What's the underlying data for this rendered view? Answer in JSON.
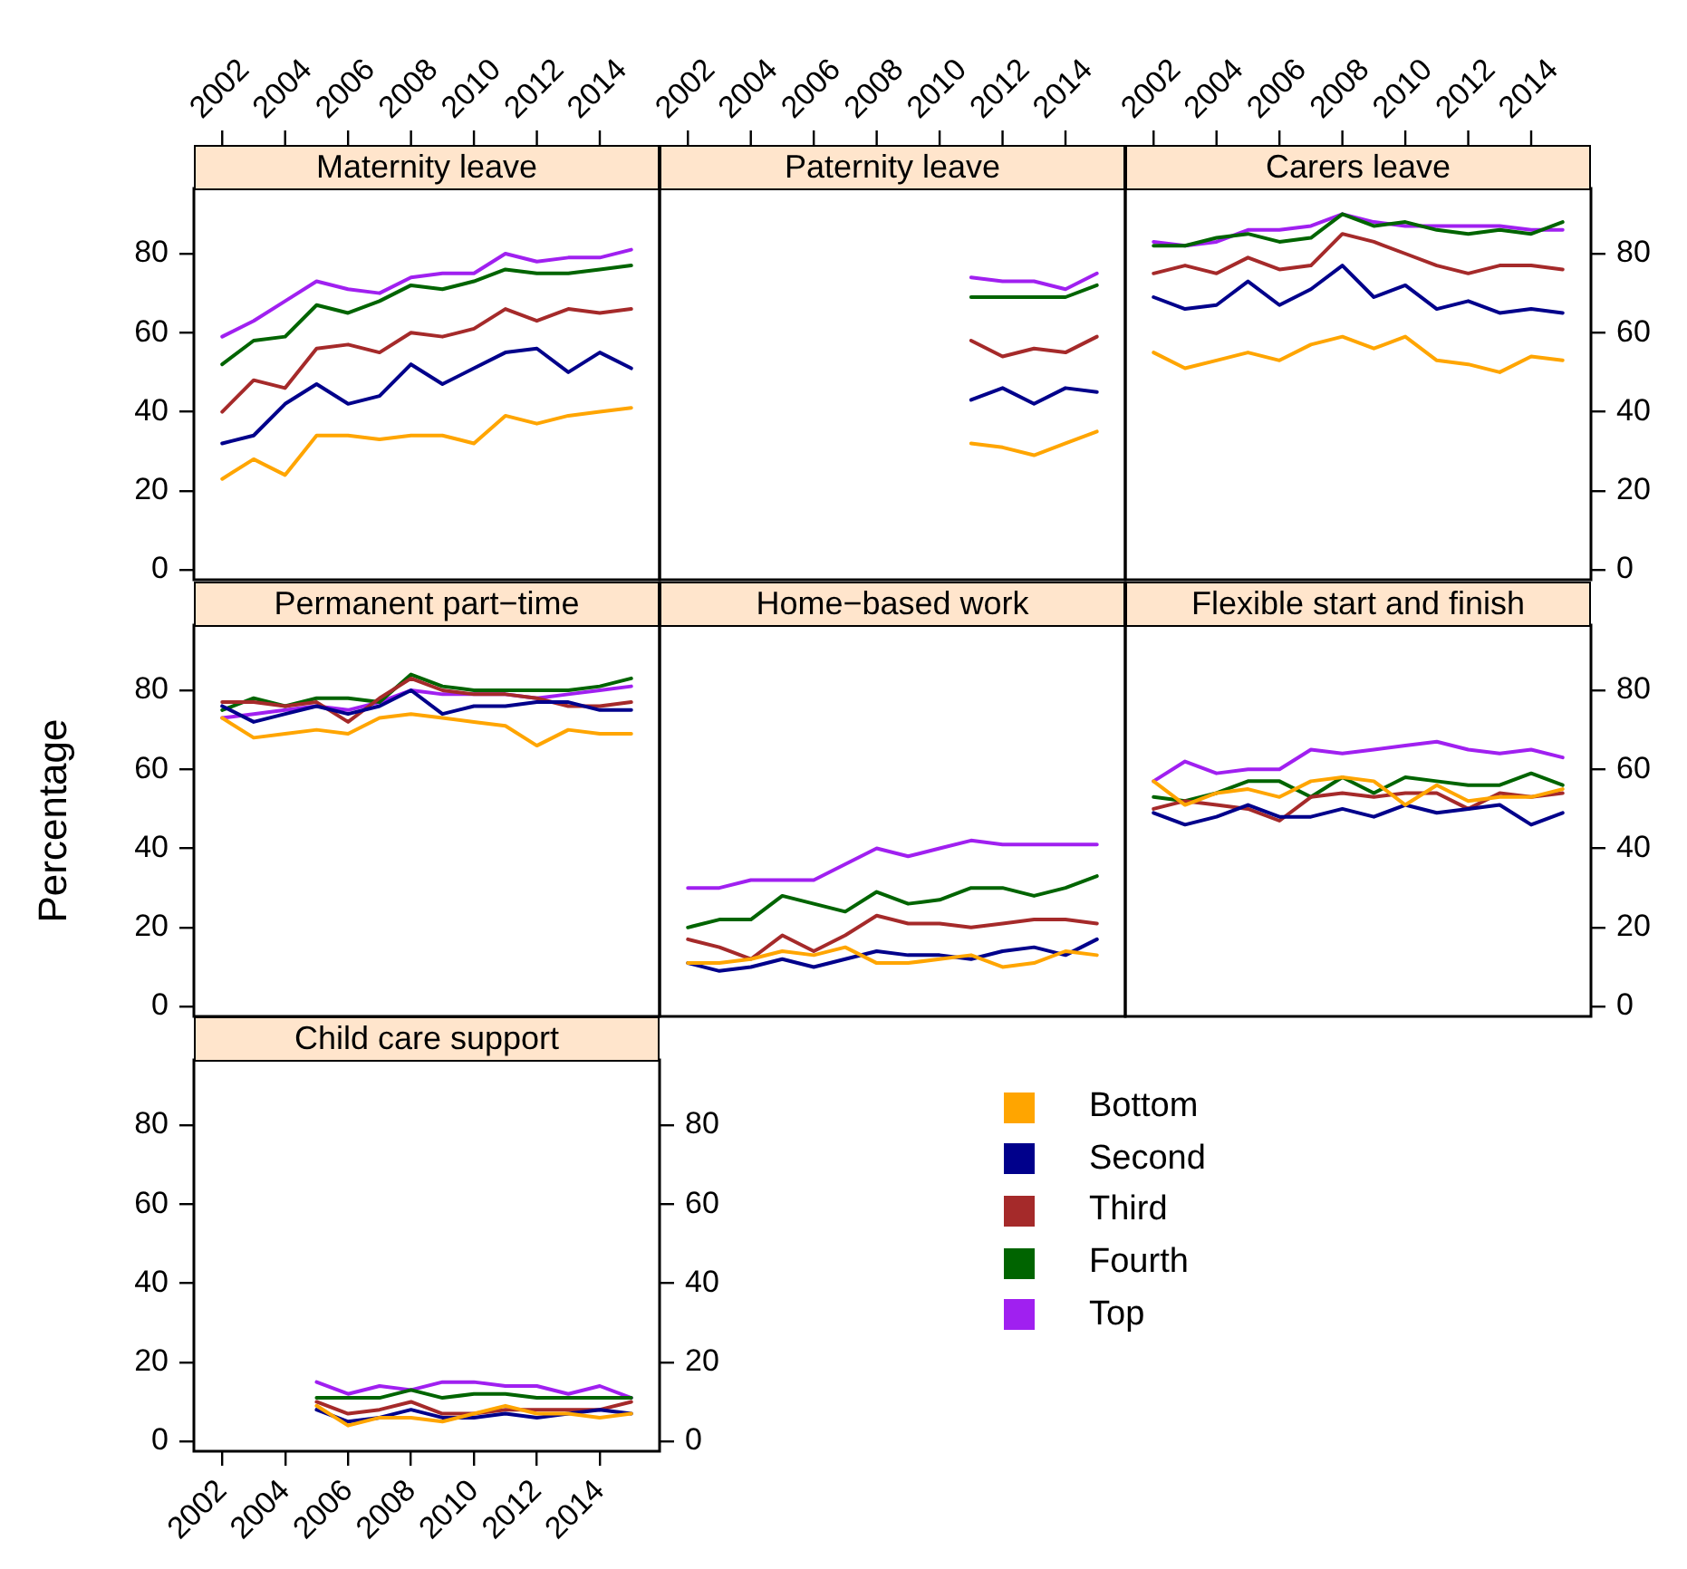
{
  "chart_data": [
    {
      "type": "line",
      "title": "Maternity leave",
      "x": [
        2002,
        2003,
        2004,
        2005,
        2006,
        2007,
        2008,
        2009,
        2010,
        2011,
        2012,
        2013,
        2014,
        2015
      ],
      "xlim": [
        2001.1,
        2015.9
      ],
      "xticks": [
        2002,
        2004,
        2006,
        2008,
        2010,
        2012,
        2014
      ],
      "ylim": [
        -2.5,
        96.5
      ],
      "yticks": [
        0,
        20,
        40,
        60,
        80
      ],
      "grid": false,
      "series": [
        {
          "color": "#ffa500",
          "values": [
            23,
            28,
            24,
            34,
            34,
            33,
            34,
            34,
            32,
            39,
            37,
            39,
            40,
            41
          ]
        },
        {
          "color": "#00008b",
          "values": [
            32,
            34,
            42,
            47,
            42,
            44,
            52,
            47,
            51,
            55,
            56,
            50,
            55,
            51
          ]
        },
        {
          "color": "#a52a2a",
          "values": [
            40,
            48,
            46,
            56,
            57,
            55,
            60,
            59,
            61,
            66,
            63,
            66,
            65,
            66
          ]
        },
        {
          "color": "#006400",
          "values": [
            52,
            58,
            59,
            67,
            65,
            68,
            72,
            71,
            73,
            76,
            75,
            75,
            76,
            77
          ]
        },
        {
          "color": "#a020f0",
          "values": [
            59,
            63,
            68,
            73,
            71,
            70,
            74,
            75,
            75,
            80,
            78,
            79,
            79,
            81
          ]
        }
      ]
    },
    {
      "type": "line",
      "title": "Paternity leave",
      "x": [
        2011,
        2012,
        2013,
        2014,
        2015
      ],
      "xlim": [
        2001.1,
        2015.9
      ],
      "xticks": [
        2002,
        2004,
        2006,
        2008,
        2010,
        2012,
        2014
      ],
      "ylim": [
        -2.5,
        96.5
      ],
      "tick_labels": "x",
      "grid": false,
      "series": [
        {
          "color": "#ffa500",
          "values": [
            32,
            31,
            29,
            32,
            35
          ]
        },
        {
          "color": "#00008b",
          "values": [
            43,
            46,
            42,
            46,
            45
          ]
        },
        {
          "color": "#a52a2a",
          "values": [
            58,
            54,
            56,
            55,
            59
          ]
        },
        {
          "color": "#006400",
          "values": [
            69,
            69,
            69,
            69,
            72
          ]
        },
        {
          "color": "#a020f0",
          "values": [
            74,
            73,
            73,
            71,
            75
          ]
        }
      ]
    },
    {
      "type": "line",
      "title": "Carers leave",
      "x": [
        2002,
        2003,
        2004,
        2005,
        2006,
        2007,
        2008,
        2009,
        2010,
        2011,
        2012,
        2013,
        2014,
        2015
      ],
      "xlim": [
        2001.1,
        2015.9
      ],
      "xticks": [
        2002,
        2004,
        2006,
        2008,
        2010,
        2012,
        2014
      ],
      "ylim": [
        -2.5,
        96.5
      ],
      "yticks": [
        0,
        20,
        40,
        60,
        80
      ],
      "grid": false,
      "series": [
        {
          "color": "#ffa500",
          "values": [
            55,
            51,
            53,
            55,
            53,
            57,
            59,
            56,
            59,
            53,
            52,
            50,
            54,
            53
          ]
        },
        {
          "color": "#00008b",
          "values": [
            69,
            66,
            67,
            73,
            67,
            71,
            77,
            69,
            72,
            66,
            68,
            65,
            66,
            65
          ]
        },
        {
          "color": "#a52a2a",
          "values": [
            75,
            77,
            75,
            79,
            76,
            77,
            85,
            83,
            80,
            77,
            75,
            77,
            77,
            76
          ]
        },
        {
          "color": "#006400",
          "values": [
            82,
            82,
            84,
            85,
            83,
            84,
            90,
            87,
            88,
            86,
            85,
            86,
            85,
            88
          ]
        },
        {
          "color": "#a020f0",
          "values": [
            83,
            82,
            83,
            86,
            86,
            87,
            90,
            88,
            87,
            87,
            87,
            87,
            86,
            86
          ]
        }
      ]
    },
    {
      "type": "line",
      "title": "Permanent part−time",
      "ylabel": "Percentage",
      "x": [
        2002,
        2003,
        2004,
        2005,
        2006,
        2007,
        2008,
        2009,
        2010,
        2011,
        2012,
        2013,
        2014,
        2015
      ],
      "xlim": [
        2001.1,
        2015.9
      ],
      "ylim": [
        -2.5,
        96.5
      ],
      "yticks": [
        0,
        20,
        40,
        60,
        80
      ],
      "tick_labels": "y",
      "grid": false,
      "series": [
        {
          "color": "#ffa500",
          "values": [
            73,
            68,
            69,
            70,
            69,
            73,
            74,
            73,
            72,
            71,
            66,
            70,
            69,
            69
          ]
        },
        {
          "color": "#00008b",
          "values": [
            76,
            72,
            74,
            76,
            74,
            76,
            80,
            74,
            76,
            76,
            77,
            77,
            75,
            75
          ]
        },
        {
          "color": "#a52a2a",
          "values": [
            77,
            77,
            76,
            77,
            72,
            78,
            83,
            80,
            79,
            79,
            78,
            76,
            76,
            77
          ]
        },
        {
          "color": "#006400",
          "values": [
            75,
            78,
            76,
            78,
            78,
            77,
            84,
            81,
            80,
            80,
            80,
            80,
            81,
            83
          ]
        },
        {
          "color": "#a020f0",
          "values": [
            73,
            74,
            75,
            76,
            75,
            77,
            80,
            79,
            79,
            79,
            78,
            79,
            80,
            81
          ]
        }
      ]
    },
    {
      "type": "line",
      "title": "Home−based work",
      "x": [
        2002,
        2003,
        2004,
        2005,
        2006,
        2007,
        2008,
        2009,
        2010,
        2011,
        2012,
        2013,
        2014,
        2015
      ],
      "xlim": [
        2001.1,
        2015.9
      ],
      "ylim": [
        -2.5,
        96.5
      ],
      "tick_labels": false,
      "grid": false,
      "series": [
        {
          "color": "#ffa500",
          "values": [
            11,
            11,
            12,
            14,
            13,
            15,
            11,
            11,
            12,
            13,
            10,
            11,
            14,
            13
          ]
        },
        {
          "color": "#00008b",
          "values": [
            11,
            9,
            10,
            12,
            10,
            12,
            14,
            13,
            13,
            12,
            14,
            15,
            13,
            17
          ]
        },
        {
          "color": "#a52a2a",
          "values": [
            17,
            15,
            12,
            18,
            14,
            18,
            23,
            21,
            21,
            20,
            21,
            22,
            22,
            21
          ]
        },
        {
          "color": "#006400",
          "values": [
            20,
            22,
            22,
            28,
            26,
            24,
            29,
            26,
            27,
            30,
            30,
            28,
            30,
            33
          ]
        },
        {
          "color": "#a020f0",
          "values": [
            30,
            30,
            32,
            32,
            32,
            36,
            40,
            38,
            40,
            42,
            41,
            41,
            41,
            41
          ]
        }
      ]
    },
    {
      "type": "line",
      "title": "Flexible start and finish",
      "x": [
        2002,
        2003,
        2004,
        2005,
        2006,
        2007,
        2008,
        2009,
        2010,
        2011,
        2012,
        2013,
        2014,
        2015
      ],
      "xlim": [
        2001.1,
        2015.9
      ],
      "ylim": [
        -2.5,
        96.5
      ],
      "yticks": [
        0,
        20,
        40,
        60,
        80
      ],
      "tick_labels": "y",
      "grid": false,
      "series": [
        {
          "color": "#ffa500",
          "values": [
            57,
            51,
            54,
            55,
            53,
            57,
            58,
            57,
            51,
            56,
            52,
            53,
            53,
            55
          ]
        },
        {
          "color": "#00008b",
          "values": [
            49,
            46,
            48,
            51,
            48,
            48,
            50,
            48,
            51,
            49,
            50,
            51,
            46,
            49
          ]
        },
        {
          "color": "#a52a2a",
          "values": [
            50,
            52,
            51,
            50,
            47,
            53,
            54,
            53,
            54,
            54,
            50,
            54,
            53,
            54
          ]
        },
        {
          "color": "#006400",
          "values": [
            53,
            52,
            54,
            57,
            57,
            53,
            58,
            54,
            58,
            57,
            56,
            56,
            59,
            56
          ]
        },
        {
          "color": "#a020f0",
          "values": [
            57,
            62,
            59,
            60,
            60,
            65,
            64,
            65,
            66,
            67,
            65,
            64,
            65,
            63
          ]
        }
      ]
    },
    {
      "type": "line",
      "title": "Child care support",
      "x": [
        2005,
        2006,
        2007,
        2008,
        2009,
        2010,
        2011,
        2012,
        2013,
        2014,
        2015
      ],
      "xlim": [
        2001.1,
        2015.9
      ],
      "xticks": [
        2002,
        2004,
        2006,
        2008,
        2010,
        2012,
        2014
      ],
      "ylim": [
        -2.5,
        96.5
      ],
      "yticks": [
        0,
        20,
        40,
        60,
        80
      ],
      "y2lim": [
        -2.5,
        96.5
      ],
      "y2ticks": [
        0,
        20,
        40,
        60,
        80
      ],
      "grid": false,
      "legend": "right",
      "series": [
        {
          "name": "Bottom",
          "color": "#ffa500",
          "values": [
            9,
            4,
            6,
            6,
            5,
            7,
            9,
            7,
            7,
            6,
            7
          ]
        },
        {
          "name": "Second",
          "color": "#00008b",
          "values": [
            8,
            5,
            6,
            8,
            6,
            6,
            7,
            6,
            7,
            8,
            7
          ]
        },
        {
          "name": "Third",
          "color": "#a52a2a",
          "values": [
            10,
            7,
            8,
            10,
            7,
            7,
            8,
            8,
            8,
            8,
            10
          ]
        },
        {
          "name": "Fourth",
          "color": "#006400",
          "values": [
            11,
            11,
            11,
            13,
            11,
            12,
            12,
            11,
            11,
            11,
            11
          ]
        },
        {
          "name": "Top",
          "color": "#a020f0",
          "values": [
            15,
            12,
            14,
            13,
            15,
            15,
            14,
            14,
            12,
            14,
            11
          ]
        }
      ]
    }
  ]
}
